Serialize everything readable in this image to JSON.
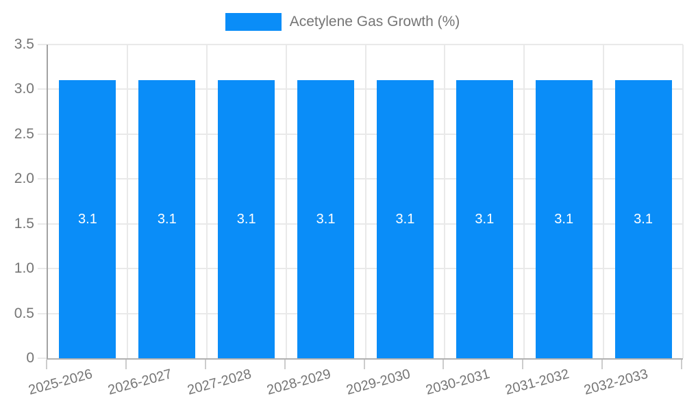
{
  "legend": {
    "label": "Acetylene Gas Growth (%)"
  },
  "colors": {
    "bar": "#0a8df8",
    "grid": "#e9e9e9",
    "axis_y": "#a3a3a3",
    "axis_x": "#b0b0b0",
    "tick": "#cccccc",
    "text": "#757575",
    "value_label": "#ffffff",
    "background": "#ffffff"
  },
  "chart_data": {
    "type": "bar",
    "title": "",
    "xlabel": "",
    "ylabel": "",
    "categories": [
      "2025-2026",
      "2026-2027",
      "2027-2028",
      "2028-2029",
      "2029-2030",
      "2030-2031",
      "2031-2032",
      "2032-2033"
    ],
    "series": [
      {
        "name": "Acetylene Gas Growth (%)",
        "values": [
          3.1,
          3.1,
          3.1,
          3.1,
          3.1,
          3.1,
          3.1,
          3.1
        ]
      }
    ],
    "value_labels": [
      "3.1",
      "3.1",
      "3.1",
      "3.1",
      "3.1",
      "3.1",
      "3.1",
      "3.1"
    ],
    "ylim": [
      0,
      3.5
    ],
    "ytick_interval": 0.5,
    "ytick_labels": [
      "0",
      "0.5",
      "1.0",
      "1.5",
      "2.0",
      "2.5",
      "3.0",
      "3.5"
    ],
    "grid": true,
    "legend_position": "top"
  }
}
